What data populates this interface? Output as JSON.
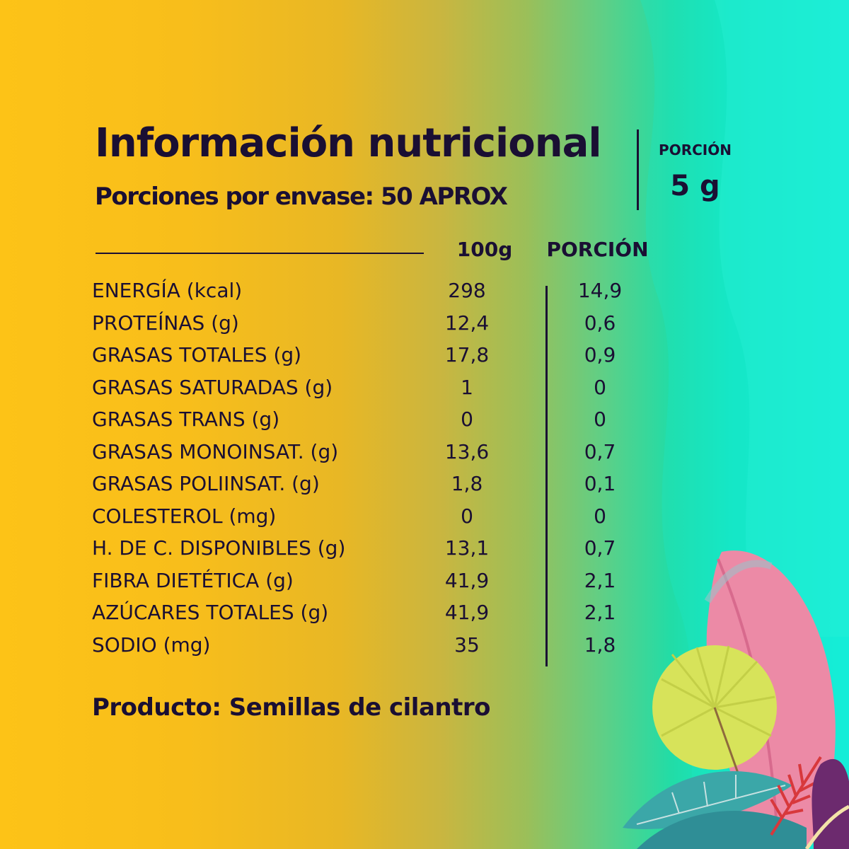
{
  "header": {
    "title": "Información nutricional",
    "subtitle": "Porciones por envase: 50 APROX",
    "portion_label": "PORCIÓN",
    "portion_value": "5 g"
  },
  "table": {
    "col_100g": "100g",
    "col_portion": "PORCIÓN",
    "rows": [
      {
        "name": "ENERGÍA (kcal)",
        "per100": "298",
        "portion": "14,9"
      },
      {
        "name": "PROTEÍNAS (g)",
        "per100": "12,4",
        "portion": "0,6"
      },
      {
        "name": "GRASAS TOTALES (g)",
        "per100": "17,8",
        "portion": "0,9"
      },
      {
        "name": "GRASAS SATURADAS (g)",
        "per100": "1",
        "portion": "0"
      },
      {
        "name": "GRASAS TRANS (g)",
        "per100": "0",
        "portion": "0"
      },
      {
        "name": "GRASAS MONOINSAT. (g)",
        "per100": "13,6",
        "portion": "0,7"
      },
      {
        "name": "GRASAS POLIINSAT. (g)",
        "per100": "1,8",
        "portion": "0,1"
      },
      {
        "name": "COLESTEROL (mg)",
        "per100": "0",
        "portion": "0"
      },
      {
        "name": "H. DE C. DISPONIBLES (g)",
        "per100": "13,1",
        "portion": "0,7"
      },
      {
        "name": "FIBRA DIETÉTICA (g)",
        "per100": "41,9",
        "portion": "2,1"
      },
      {
        "name": "AZÚCARES TOTALES (g)",
        "per100": "41,9",
        "portion": "2,1"
      },
      {
        "name": "SODIO (mg)",
        "per100": "35",
        "portion": "1,8"
      }
    ]
  },
  "footer": {
    "product": "Producto:  Semillas de cilantro"
  },
  "colors": {
    "text": "#1a0f33",
    "gradient_left": "#fdc317",
    "gradient_right": "#12f2e4"
  }
}
